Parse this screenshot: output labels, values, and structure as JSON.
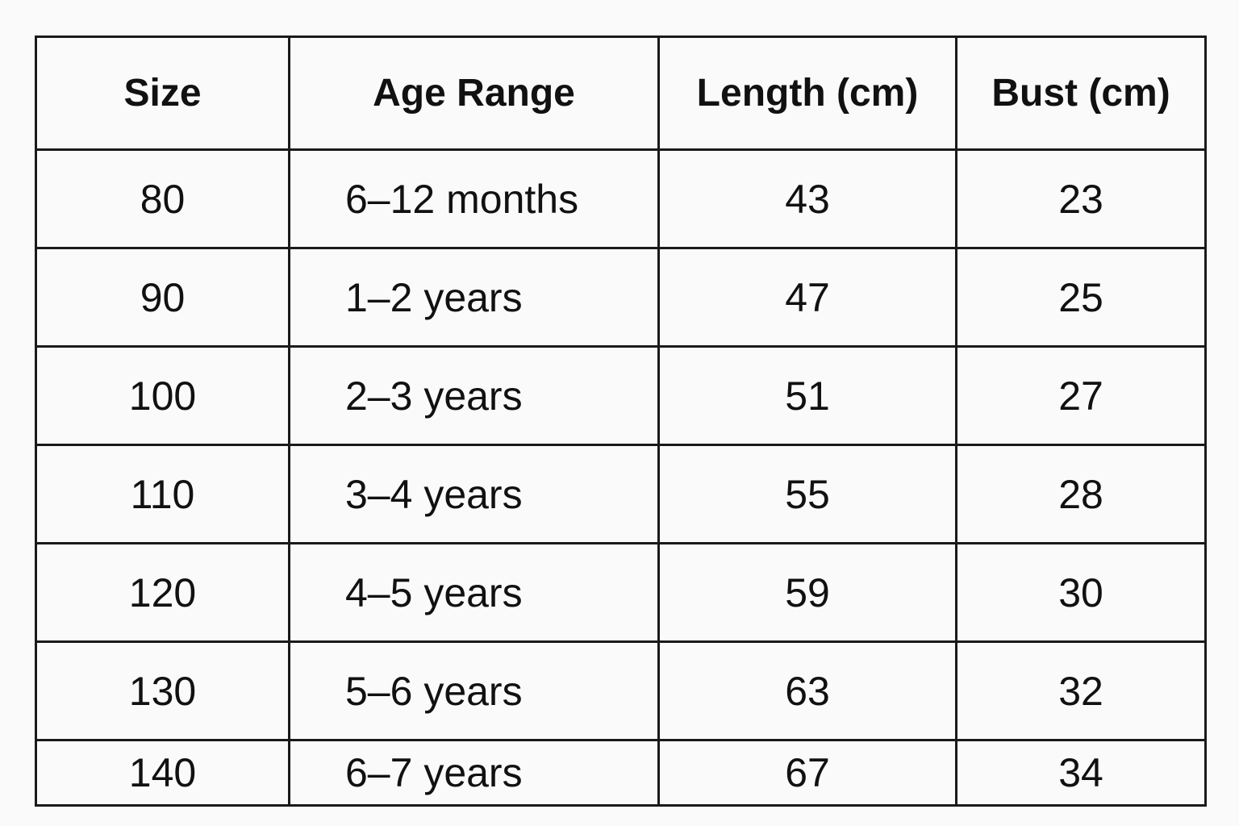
{
  "table": {
    "header": [
      "Size",
      "Age Range",
      "Length (cm)",
      "Bust (cm)"
    ],
    "rows": [
      [
        80,
        "6–12 months",
        43,
        23
      ],
      [
        90,
        "1–2 years",
        47,
        25
      ],
      [
        100,
        "2–3 years",
        51,
        27
      ],
      [
        110,
        "3–4 years",
        55,
        28
      ],
      [
        120,
        "4–5 years",
        59,
        30
      ],
      [
        130,
        "5–6 years",
        63,
        32
      ],
      [
        140,
        "6–7 years",
        67,
        34
      ]
    ]
  }
}
